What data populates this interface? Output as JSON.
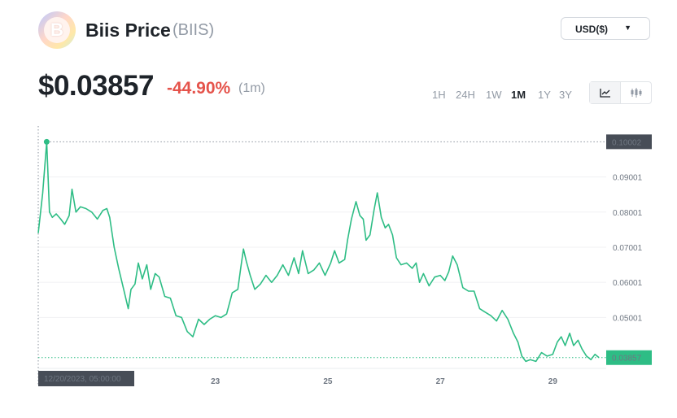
{
  "header": {
    "coin_name": "Biis Price",
    "ticker": "(BIIS)",
    "currency": "USD($)",
    "logo_icon": "coin-logo-icon"
  },
  "price": {
    "value": "$0.03857",
    "change": "-44.90%",
    "period": "(1m)"
  },
  "colors": {
    "line": "#2ebd85",
    "down": "#e5534b",
    "axis_label_bg": "#474d57",
    "current_label_bg": "#2ebd85"
  },
  "ranges": {
    "items": [
      "1H",
      "24H",
      "1W",
      "1M",
      "1Y",
      "3Y"
    ],
    "active": "1M"
  },
  "chart_toggle": {
    "line_icon": "line-chart-icon",
    "candle_icon": "candlestick-icon",
    "selected": "line"
  },
  "chart_data": {
    "type": "line",
    "x_start": "12/19/2023",
    "x_end": "12/30/2023",
    "ylim": [
      0.0355,
      0.1045
    ],
    "y_ticks": [
      "0.09001",
      "0.08001",
      "0.07001",
      "0.06001",
      "0.05001"
    ],
    "x_tick_labels": [
      {
        "label": "23",
        "day": 23
      },
      {
        "label": "25",
        "day": 25
      },
      {
        "label": "27",
        "day": 27
      },
      {
        "label": "29",
        "day": 29
      }
    ],
    "max_label": "0.10002",
    "max_value": 0.10002,
    "current_label": "0.03857",
    "current_value": 0.03857,
    "crosshair_time_label": "12/20/2023, 05:00:00",
    "grid": true,
    "points": [
      [
        19.85,
        0.074
      ],
      [
        19.93,
        0.0855
      ],
      [
        20.0,
        0.1
      ],
      [
        20.05,
        0.08
      ],
      [
        20.1,
        0.0785
      ],
      [
        20.17,
        0.0795
      ],
      [
        20.25,
        0.078
      ],
      [
        20.32,
        0.0765
      ],
      [
        20.4,
        0.079
      ],
      [
        20.45,
        0.0865
      ],
      [
        20.52,
        0.08
      ],
      [
        20.6,
        0.0815
      ],
      [
        20.7,
        0.081
      ],
      [
        20.8,
        0.08
      ],
      [
        20.9,
        0.078
      ],
      [
        21.0,
        0.0805
      ],
      [
        21.07,
        0.081
      ],
      [
        21.12,
        0.0785
      ],
      [
        21.2,
        0.07
      ],
      [
        21.28,
        0.064
      ],
      [
        21.37,
        0.058
      ],
      [
        21.45,
        0.0525
      ],
      [
        21.5,
        0.058
      ],
      [
        21.57,
        0.0595
      ],
      [
        21.63,
        0.0655
      ],
      [
        21.7,
        0.061
      ],
      [
        21.78,
        0.065
      ],
      [
        21.85,
        0.058
      ],
      [
        21.93,
        0.0625
      ],
      [
        22.0,
        0.0615
      ],
      [
        22.1,
        0.056
      ],
      [
        22.2,
        0.0555
      ],
      [
        22.3,
        0.0505
      ],
      [
        22.4,
        0.05
      ],
      [
        22.5,
        0.046
      ],
      [
        22.6,
        0.0445
      ],
      [
        22.7,
        0.0495
      ],
      [
        22.8,
        0.048
      ],
      [
        22.9,
        0.0495
      ],
      [
        23.0,
        0.0505
      ],
      [
        23.1,
        0.05
      ],
      [
        23.2,
        0.051
      ],
      [
        23.3,
        0.057
      ],
      [
        23.4,
        0.058
      ],
      [
        23.45,
        0.064
      ],
      [
        23.5,
        0.0695
      ],
      [
        23.55,
        0.066
      ],
      [
        23.62,
        0.062
      ],
      [
        23.7,
        0.058
      ],
      [
        23.8,
        0.0595
      ],
      [
        23.9,
        0.062
      ],
      [
        24.0,
        0.06
      ],
      [
        24.1,
        0.062
      ],
      [
        24.2,
        0.065
      ],
      [
        24.3,
        0.062
      ],
      [
        24.4,
        0.067
      ],
      [
        24.48,
        0.0625
      ],
      [
        24.55,
        0.069
      ],
      [
        24.65,
        0.0625
      ],
      [
        24.75,
        0.0635
      ],
      [
        24.85,
        0.0655
      ],
      [
        24.95,
        0.062
      ],
      [
        25.05,
        0.0655
      ],
      [
        25.12,
        0.069
      ],
      [
        25.2,
        0.0655
      ],
      [
        25.3,
        0.0665
      ],
      [
        25.35,
        0.072
      ],
      [
        25.42,
        0.078
      ],
      [
        25.5,
        0.083
      ],
      [
        25.57,
        0.079
      ],
      [
        25.63,
        0.078
      ],
      [
        25.68,
        0.072
      ],
      [
        25.75,
        0.0735
      ],
      [
        25.82,
        0.0805
      ],
      [
        25.88,
        0.0855
      ],
      [
        25.95,
        0.0785
      ],
      [
        26.02,
        0.0755
      ],
      [
        26.08,
        0.0765
      ],
      [
        26.15,
        0.0735
      ],
      [
        26.22,
        0.067
      ],
      [
        26.3,
        0.065
      ],
      [
        26.4,
        0.0655
      ],
      [
        26.5,
        0.064
      ],
      [
        26.57,
        0.0655
      ],
      [
        26.63,
        0.06
      ],
      [
        26.7,
        0.0625
      ],
      [
        26.8,
        0.059
      ],
      [
        26.9,
        0.0615
      ],
      [
        27.0,
        0.062
      ],
      [
        27.08,
        0.0605
      ],
      [
        27.15,
        0.063
      ],
      [
        27.22,
        0.0675
      ],
      [
        27.3,
        0.065
      ],
      [
        27.4,
        0.0585
      ],
      [
        27.5,
        0.0575
      ],
      [
        27.6,
        0.0575
      ],
      [
        27.7,
        0.0525
      ],
      [
        27.8,
        0.0515
      ],
      [
        27.9,
        0.0505
      ],
      [
        28.0,
        0.049
      ],
      [
        28.1,
        0.052
      ],
      [
        28.2,
        0.0495
      ],
      [
        28.3,
        0.0455
      ],
      [
        28.38,
        0.043
      ],
      [
        28.45,
        0.039
      ],
      [
        28.52,
        0.0375
      ],
      [
        28.6,
        0.038
      ],
      [
        28.7,
        0.0375
      ],
      [
        28.8,
        0.04
      ],
      [
        28.9,
        0.039
      ],
      [
        29.0,
        0.0395
      ],
      [
        29.08,
        0.043
      ],
      [
        29.15,
        0.0445
      ],
      [
        29.22,
        0.042
      ],
      [
        29.3,
        0.0455
      ],
      [
        29.37,
        0.042
      ],
      [
        29.45,
        0.0435
      ],
      [
        29.52,
        0.041
      ],
      [
        29.6,
        0.039
      ],
      [
        29.68,
        0.038
      ],
      [
        29.75,
        0.0395
      ],
      [
        29.82,
        0.0386
      ]
    ]
  }
}
